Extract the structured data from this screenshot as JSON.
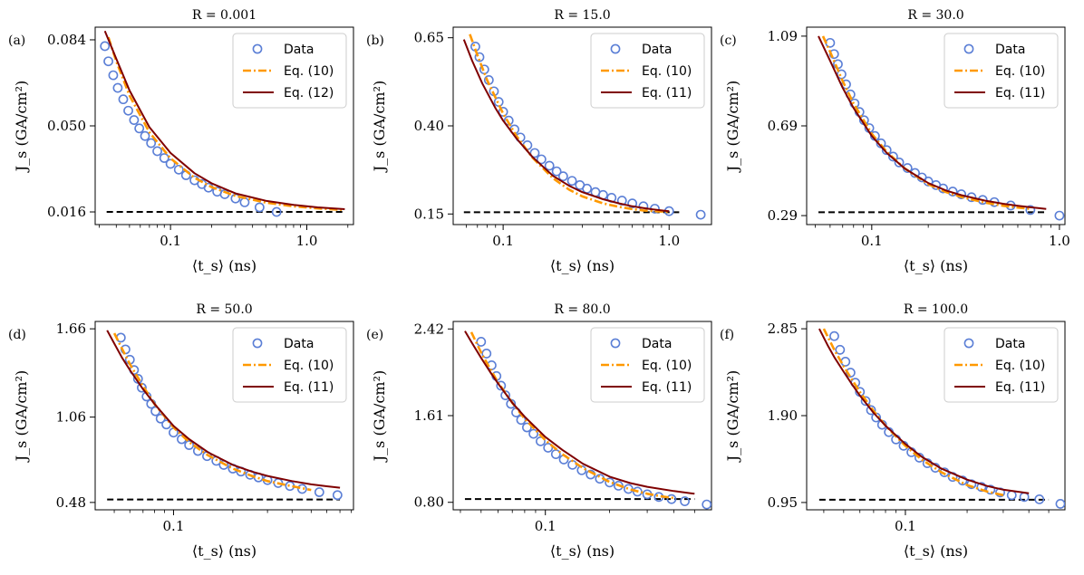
{
  "colors": {
    "data": "#5b7fd6",
    "eq10": "#ff9900",
    "eq_model": "#7f0000",
    "baseline": "#000000"
  },
  "chart_data": [
    {
      "type": "scatter",
      "panel": "(a)",
      "title": "R = 0.001",
      "xlabel": "⟨t_s⟩ (ns)",
      "ylabel": "J_s (GA/cm²)",
      "xscale": "log",
      "xlim": [
        0.028,
        2.2
      ],
      "ylim": [
        0.011,
        0.089
      ],
      "xticks": [
        0.1,
        1.0
      ],
      "xtick_labels": [
        "0.1",
        "1.0"
      ],
      "yticks": [
        0.016,
        0.05,
        0.084
      ],
      "ytick_labels": [
        "0.016",
        "0.050",
        "0.084"
      ],
      "legend": {
        "position": "top-right",
        "entries": [
          "Data",
          "Eq. (10)",
          "Eq. (12)"
        ]
      },
      "baseline": {
        "y": 0.016,
        "x": [
          0.034,
          1.9
        ]
      },
      "series": [
        {
          "name": "Data",
          "style": "markers",
          "x": [
            0.033,
            0.035,
            0.038,
            0.041,
            0.045,
            0.049,
            0.054,
            0.059,
            0.065,
            0.072,
            0.08,
            0.09,
            0.1,
            0.115,
            0.13,
            0.15,
            0.17,
            0.19,
            0.22,
            0.25,
            0.3,
            0.35,
            0.45,
            0.6
          ],
          "y": [
            0.0815,
            0.0755,
            0.07,
            0.065,
            0.0605,
            0.056,
            0.0523,
            0.049,
            0.046,
            0.0432,
            0.04,
            0.0373,
            0.035,
            0.0327,
            0.0305,
            0.0285,
            0.027,
            0.0256,
            0.024,
            0.023,
            0.0213,
            0.0198,
            0.0178,
            0.016
          ]
        },
        {
          "name": "Eq. (10)",
          "style": "dashdot",
          "x": [
            0.035,
            0.04,
            0.05,
            0.07,
            0.1,
            0.15,
            0.2,
            0.3,
            0.5,
            0.8,
            1.2,
            1.8
          ],
          "y": [
            0.085,
            0.0755,
            0.062,
            0.0475,
            0.0372,
            0.0295,
            0.0258,
            0.0223,
            0.0197,
            0.0182,
            0.0174,
            0.0168
          ]
        },
        {
          "name": "Eq. (12)",
          "style": "solid",
          "x": [
            0.033,
            0.04,
            0.05,
            0.07,
            0.1,
            0.15,
            0.2,
            0.3,
            0.5,
            0.8,
            1.2,
            1.9
          ],
          "y": [
            0.0875,
            0.0765,
            0.064,
            0.0495,
            0.0393,
            0.0313,
            0.0273,
            0.0233,
            0.0204,
            0.0188,
            0.0178,
            0.0171
          ]
        }
      ]
    },
    {
      "type": "scatter",
      "panel": "(b)",
      "title": "R = 15.0",
      "xlabel": "⟨t_s⟩ (ns)",
      "ylabel": "J_s (GA/cm²)",
      "xscale": "log",
      "xlim": [
        0.05,
        1.8
      ],
      "ylim": [
        0.12,
        0.68
      ],
      "xticks": [
        0.1,
        1.0
      ],
      "xtick_labels": [
        "0.1",
        "1.0"
      ],
      "yticks": [
        0.15,
        0.4,
        0.65
      ],
      "ytick_labels": [
        "0.15",
        "0.40",
        "0.65"
      ],
      "legend": {
        "position": "top-right",
        "entries": [
          "Data",
          "Eq. (10)",
          "Eq. (11)"
        ]
      },
      "baseline": {
        "y": 0.155,
        "x": [
          0.058,
          1.15
        ]
      },
      "series": [
        {
          "name": "Data",
          "style": "markers",
          "x": [
            0.068,
            0.072,
            0.077,
            0.082,
            0.088,
            0.094,
            0.1,
            0.108,
            0.117,
            0.127,
            0.14,
            0.155,
            0.17,
            0.19,
            0.21,
            0.23,
            0.26,
            0.29,
            0.32,
            0.36,
            0.4,
            0.45,
            0.52,
            0.6,
            0.7,
            0.82,
            1.0,
            1.55
          ],
          "y": [
            0.625,
            0.595,
            0.56,
            0.53,
            0.498,
            0.468,
            0.44,
            0.415,
            0.39,
            0.367,
            0.345,
            0.323,
            0.305,
            0.287,
            0.271,
            0.257,
            0.244,
            0.232,
            0.222,
            0.212,
            0.204,
            0.196,
            0.188,
            0.18,
            0.172,
            0.165,
            0.158,
            0.148
          ]
        },
        {
          "name": "Eq. (10)",
          "style": "dashdot",
          "x": [
            0.063,
            0.07,
            0.08,
            0.1,
            0.12,
            0.15,
            0.2,
            0.25,
            0.3,
            0.4,
            0.5,
            0.6,
            0.7,
            0.8,
            0.9,
            1.0
          ],
          "y": [
            0.66,
            0.6,
            0.53,
            0.435,
            0.372,
            0.31,
            0.251,
            0.219,
            0.2,
            0.18,
            0.17,
            0.164,
            0.16,
            0.158,
            0.157,
            0.156
          ]
        },
        {
          "name": "Eq. (11)",
          "style": "solid",
          "x": [
            0.058,
            0.065,
            0.075,
            0.09,
            0.1,
            0.12,
            0.15,
            0.2,
            0.25,
            0.3,
            0.4,
            0.5,
            0.6,
            0.7,
            0.8,
            0.9,
            1.0
          ],
          "y": [
            0.645,
            0.585,
            0.52,
            0.45,
            0.415,
            0.365,
            0.312,
            0.258,
            0.23,
            0.212,
            0.192,
            0.18,
            0.172,
            0.167,
            0.163,
            0.16,
            0.158
          ]
        }
      ]
    },
    {
      "type": "scatter",
      "panel": "(c)",
      "title": "R = 30.0",
      "xlabel": "⟨t_s⟩ (ns)",
      "ylabel": "J_s (GA/cm²)",
      "xscale": "log",
      "xlim": [
        0.045,
        1.07
      ],
      "ylim": [
        0.25,
        1.13
      ],
      "xticks": [
        0.1,
        1.0
      ],
      "xtick_labels": [
        "0.1",
        "1.0"
      ],
      "yticks": [
        0.29,
        0.69,
        1.09
      ],
      "ytick_labels": [
        "0.29",
        "0.69",
        "1.09"
      ],
      "legend": {
        "position": "top-right",
        "entries": [
          "Data",
          "Eq. (10)",
          "Eq. (11)"
        ]
      },
      "baseline": {
        "y": 0.305,
        "x": [
          0.052,
          0.85
        ]
      },
      "series": [
        {
          "name": "Data",
          "style": "markers",
          "x": [
            0.06,
            0.063,
            0.066,
            0.069,
            0.073,
            0.077,
            0.081,
            0.086,
            0.091,
            0.097,
            0.104,
            0.112,
            0.12,
            0.13,
            0.14,
            0.155,
            0.17,
            0.185,
            0.2,
            0.22,
            0.24,
            0.27,
            0.3,
            0.34,
            0.39,
            0.45,
            0.55,
            0.7,
            1.0
          ],
          "y": [
            1.06,
            1.01,
            0.965,
            0.92,
            0.875,
            0.83,
            0.79,
            0.752,
            0.715,
            0.68,
            0.645,
            0.612,
            0.582,
            0.553,
            0.527,
            0.502,
            0.48,
            0.46,
            0.442,
            0.426,
            0.411,
            0.397,
            0.385,
            0.372,
            0.36,
            0.35,
            0.335,
            0.315,
            0.29
          ]
        },
        {
          "name": "Eq. (10)",
          "style": "dashdot",
          "x": [
            0.055,
            0.06,
            0.07,
            0.08,
            0.1,
            0.12,
            0.15,
            0.2,
            0.25,
            0.3,
            0.4,
            0.5,
            0.6,
            0.7
          ],
          "y": [
            1.09,
            1.02,
            0.89,
            0.79,
            0.655,
            0.575,
            0.5,
            0.43,
            0.394,
            0.373,
            0.348,
            0.334,
            0.326,
            0.32
          ]
        },
        {
          "name": "Eq. (11)",
          "style": "solid",
          "x": [
            0.052,
            0.06,
            0.07,
            0.08,
            0.1,
            0.12,
            0.15,
            0.2,
            0.25,
            0.3,
            0.4,
            0.5,
            0.6,
            0.7,
            0.85
          ],
          "y": [
            1.09,
            0.98,
            0.86,
            0.77,
            0.645,
            0.57,
            0.5,
            0.435,
            0.401,
            0.381,
            0.357,
            0.343,
            0.334,
            0.327,
            0.32
          ]
        }
      ]
    },
    {
      "type": "scatter",
      "panel": "(d)",
      "title": "R = 50.0",
      "xlabel": "⟨t_s⟩ (ns)",
      "ylabel": "J_s (GA/cm²)",
      "xscale": "log",
      "xlim": [
        0.04,
        0.82
      ],
      "ylim": [
        0.43,
        1.71
      ],
      "xticks": [
        0.1
      ],
      "xtick_labels": [
        "0.1"
      ],
      "yticks": [
        0.48,
        1.06,
        1.66
      ],
      "ytick_labels": [
        "0.48",
        "1.06",
        "1.66"
      ],
      "legend": {
        "position": "top-right",
        "entries": [
          "Data",
          "Eq. (10)",
          "Eq. (11)"
        ]
      },
      "baseline": {
        "y": 0.5,
        "x": [
          0.046,
          0.7
        ]
      },
      "series": [
        {
          "name": "Data",
          "style": "markers",
          "x": [
            0.054,
            0.057,
            0.06,
            0.063,
            0.066,
            0.069,
            0.073,
            0.077,
            0.081,
            0.086,
            0.092,
            0.1,
            0.11,
            0.12,
            0.133,
            0.148,
            0.165,
            0.18,
            0.2,
            0.22,
            0.245,
            0.27,
            0.3,
            0.34,
            0.39,
            0.45,
            0.55,
            0.68
          ],
          "y": [
            1.6,
            1.52,
            1.45,
            1.38,
            1.32,
            1.26,
            1.2,
            1.15,
            1.1,
            1.05,
            1.01,
            0.955,
            0.91,
            0.87,
            0.83,
            0.795,
            0.763,
            0.735,
            0.71,
            0.69,
            0.668,
            0.65,
            0.632,
            0.612,
            0.592,
            0.572,
            0.55,
            0.53
          ]
        },
        {
          "name": "Eq. (10)",
          "style": "dashdot",
          "x": [
            0.05,
            0.055,
            0.06,
            0.07,
            0.08,
            0.1,
            0.12,
            0.15,
            0.2,
            0.25,
            0.3,
            0.4,
            0.5
          ],
          "y": [
            1.63,
            1.52,
            1.42,
            1.27,
            1.15,
            0.99,
            0.89,
            0.8,
            0.71,
            0.66,
            0.625,
            0.59,
            0.565
          ]
        },
        {
          "name": "Eq. (11)",
          "style": "solid",
          "x": [
            0.046,
            0.05,
            0.055,
            0.06,
            0.07,
            0.08,
            0.1,
            0.12,
            0.15,
            0.2,
            0.25,
            0.3,
            0.4,
            0.5,
            0.6,
            0.7
          ],
          "y": [
            1.65,
            1.56,
            1.46,
            1.38,
            1.25,
            1.15,
            1.0,
            0.91,
            0.82,
            0.735,
            0.69,
            0.66,
            0.625,
            0.603,
            0.59,
            0.58
          ]
        }
      ]
    },
    {
      "type": "scatter",
      "panel": "(e)",
      "title": "R = 80.0",
      "xlabel": "⟨t_s⟩ (ns)",
      "ylabel": "J_s (GA/cm²)",
      "xscale": "log",
      "xlim": [
        0.037,
        0.6
      ],
      "ylim": [
        0.73,
        2.49
      ],
      "xticks": [
        0.1
      ],
      "xtick_labels": [
        "0.1"
      ],
      "yticks": [
        0.8,
        1.61,
        2.42
      ],
      "ytick_labels": [
        "0.80",
        "1.61",
        "2.42"
      ],
      "legend": {
        "position": "top-right",
        "entries": [
          "Data",
          "Eq. (10)",
          "Eq. (11)"
        ]
      },
      "baseline": {
        "y": 0.83,
        "x": [
          0.042,
          0.5
        ]
      },
      "series": [
        {
          "name": "Data",
          "style": "markers",
          "x": [
            0.05,
            0.053,
            0.056,
            0.059,
            0.062,
            0.065,
            0.069,
            0.073,
            0.077,
            0.082,
            0.088,
            0.095,
            0.103,
            0.112,
            0.122,
            0.134,
            0.148,
            0.163,
            0.18,
            0.2,
            0.22,
            0.245,
            0.27,
            0.3,
            0.34,
            0.39,
            0.45,
            0.57
          ],
          "y": [
            2.3,
            2.19,
            2.08,
            1.98,
            1.89,
            1.8,
            1.72,
            1.64,
            1.57,
            1.5,
            1.44,
            1.37,
            1.31,
            1.25,
            1.2,
            1.15,
            1.1,
            1.06,
            1.02,
            0.985,
            0.955,
            0.925,
            0.9,
            0.875,
            0.85,
            0.83,
            0.81,
            0.78
          ]
        },
        {
          "name": "Eq. (10)",
          "style": "dashdot",
          "x": [
            0.045,
            0.05,
            0.055,
            0.06,
            0.07,
            0.08,
            0.1,
            0.12,
            0.15,
            0.2,
            0.25,
            0.3,
            0.35,
            0.4
          ],
          "y": [
            2.39,
            2.2,
            2.05,
            1.92,
            1.73,
            1.58,
            1.38,
            1.25,
            1.12,
            0.99,
            0.92,
            0.88,
            0.855,
            0.84
          ]
        },
        {
          "name": "Eq. (11)",
          "style": "solid",
          "x": [
            0.042,
            0.045,
            0.05,
            0.055,
            0.06,
            0.07,
            0.08,
            0.1,
            0.12,
            0.15,
            0.2,
            0.25,
            0.3,
            0.4,
            0.5
          ],
          "y": [
            2.4,
            2.3,
            2.15,
            2.02,
            1.91,
            1.73,
            1.6,
            1.41,
            1.29,
            1.16,
            1.04,
            0.98,
            0.945,
            0.905,
            0.88
          ]
        }
      ]
    },
    {
      "type": "scatter",
      "panel": "(f)",
      "title": "R = 100.0",
      "xlabel": "⟨t_s⟩ (ns)",
      "ylabel": "J_s (GA/cm²)",
      "xscale": "log",
      "xlim": [
        0.033,
        0.6
      ],
      "ylim": [
        0.87,
        2.93
      ],
      "xticks": [
        0.1
      ],
      "xtick_labels": [
        "0.1"
      ],
      "yticks": [
        0.95,
        1.9,
        2.85
      ],
      "ytick_labels": [
        "0.95",
        "1.90",
        "2.85"
      ],
      "legend": {
        "position": "top-right",
        "entries": [
          "Data",
          "Eq. (10)",
          "Eq. (11)"
        ]
      },
      "baseline": {
        "y": 0.98,
        "x": [
          0.038,
          0.5
        ]
      },
      "series": [
        {
          "name": "Data",
          "style": "markers",
          "x": [
            0.045,
            0.048,
            0.051,
            0.054,
            0.057,
            0.06,
            0.064,
            0.068,
            0.072,
            0.077,
            0.083,
            0.09,
            0.098,
            0.107,
            0.117,
            0.128,
            0.14,
            0.155,
            0.17,
            0.19,
            0.21,
            0.235,
            0.26,
            0.29,
            0.33,
            0.38,
            0.45,
            0.57
          ],
          "y": [
            2.77,
            2.62,
            2.49,
            2.37,
            2.26,
            2.16,
            2.06,
            1.96,
            1.88,
            1.8,
            1.72,
            1.64,
            1.57,
            1.5,
            1.44,
            1.38,
            1.33,
            1.28,
            1.23,
            1.19,
            1.15,
            1.12,
            1.09,
            1.06,
            1.03,
            1.01,
            0.985,
            0.935
          ]
        },
        {
          "name": "Eq. (10)",
          "style": "dashdot",
          "x": [
            0.04,
            0.045,
            0.05,
            0.055,
            0.06,
            0.07,
            0.08,
            0.1,
            0.12,
            0.15,
            0.2,
            0.25,
            0.3
          ],
          "y": [
            2.85,
            2.62,
            2.44,
            2.29,
            2.16,
            1.95,
            1.79,
            1.57,
            1.42,
            1.28,
            1.14,
            1.07,
            1.03
          ]
        },
        {
          "name": "Eq. (11)",
          "style": "solid",
          "x": [
            0.038,
            0.042,
            0.045,
            0.05,
            0.055,
            0.06,
            0.07,
            0.08,
            0.1,
            0.12,
            0.15,
            0.2,
            0.25,
            0.3,
            0.4
          ],
          "y": [
            2.85,
            2.66,
            2.54,
            2.38,
            2.24,
            2.12,
            1.93,
            1.79,
            1.59,
            1.45,
            1.32,
            1.2,
            1.13,
            1.09,
            1.05
          ]
        }
      ]
    }
  ]
}
